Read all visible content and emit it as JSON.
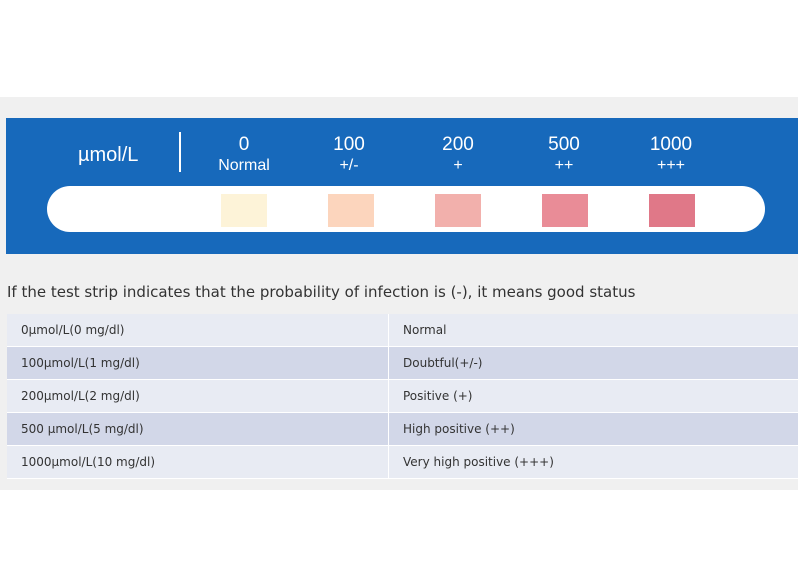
{
  "strip": {
    "unit_label": "µmol/L",
    "levels": [
      {
        "value": "0",
        "symbol": "Normal",
        "color": "#fdf3d8"
      },
      {
        "value": "100",
        "symbol": "+/-",
        "color": "#fcd5bd"
      },
      {
        "value": "200",
        "symbol": "+",
        "color": "#f2b0ac"
      },
      {
        "value": "500",
        "symbol": "++",
        "color": "#e98c97"
      },
      {
        "value": "1000",
        "symbol": "+++",
        "color": "#e07888"
      }
    ],
    "background_color": "#1769bb"
  },
  "caption": "If the test strip indicates that the probability of infection is (-), it means good status",
  "table": {
    "rows": [
      {
        "concentration": "0µmol/L(0 mg/dl)",
        "result": "Normal"
      },
      {
        "concentration": "100µmol/L(1 mg/dl)",
        "result": "Doubtful(+/-)"
      },
      {
        "concentration": "200µmol/L(2 mg/dl)",
        "result": "Positive (+)"
      },
      {
        "concentration": "500 µmol/L(5 mg/dl)",
        "result": "High positive (++)"
      },
      {
        "concentration": "1000µmol/L(10 mg/dl)",
        "result": "Very high positive (+++)"
      }
    ]
  }
}
